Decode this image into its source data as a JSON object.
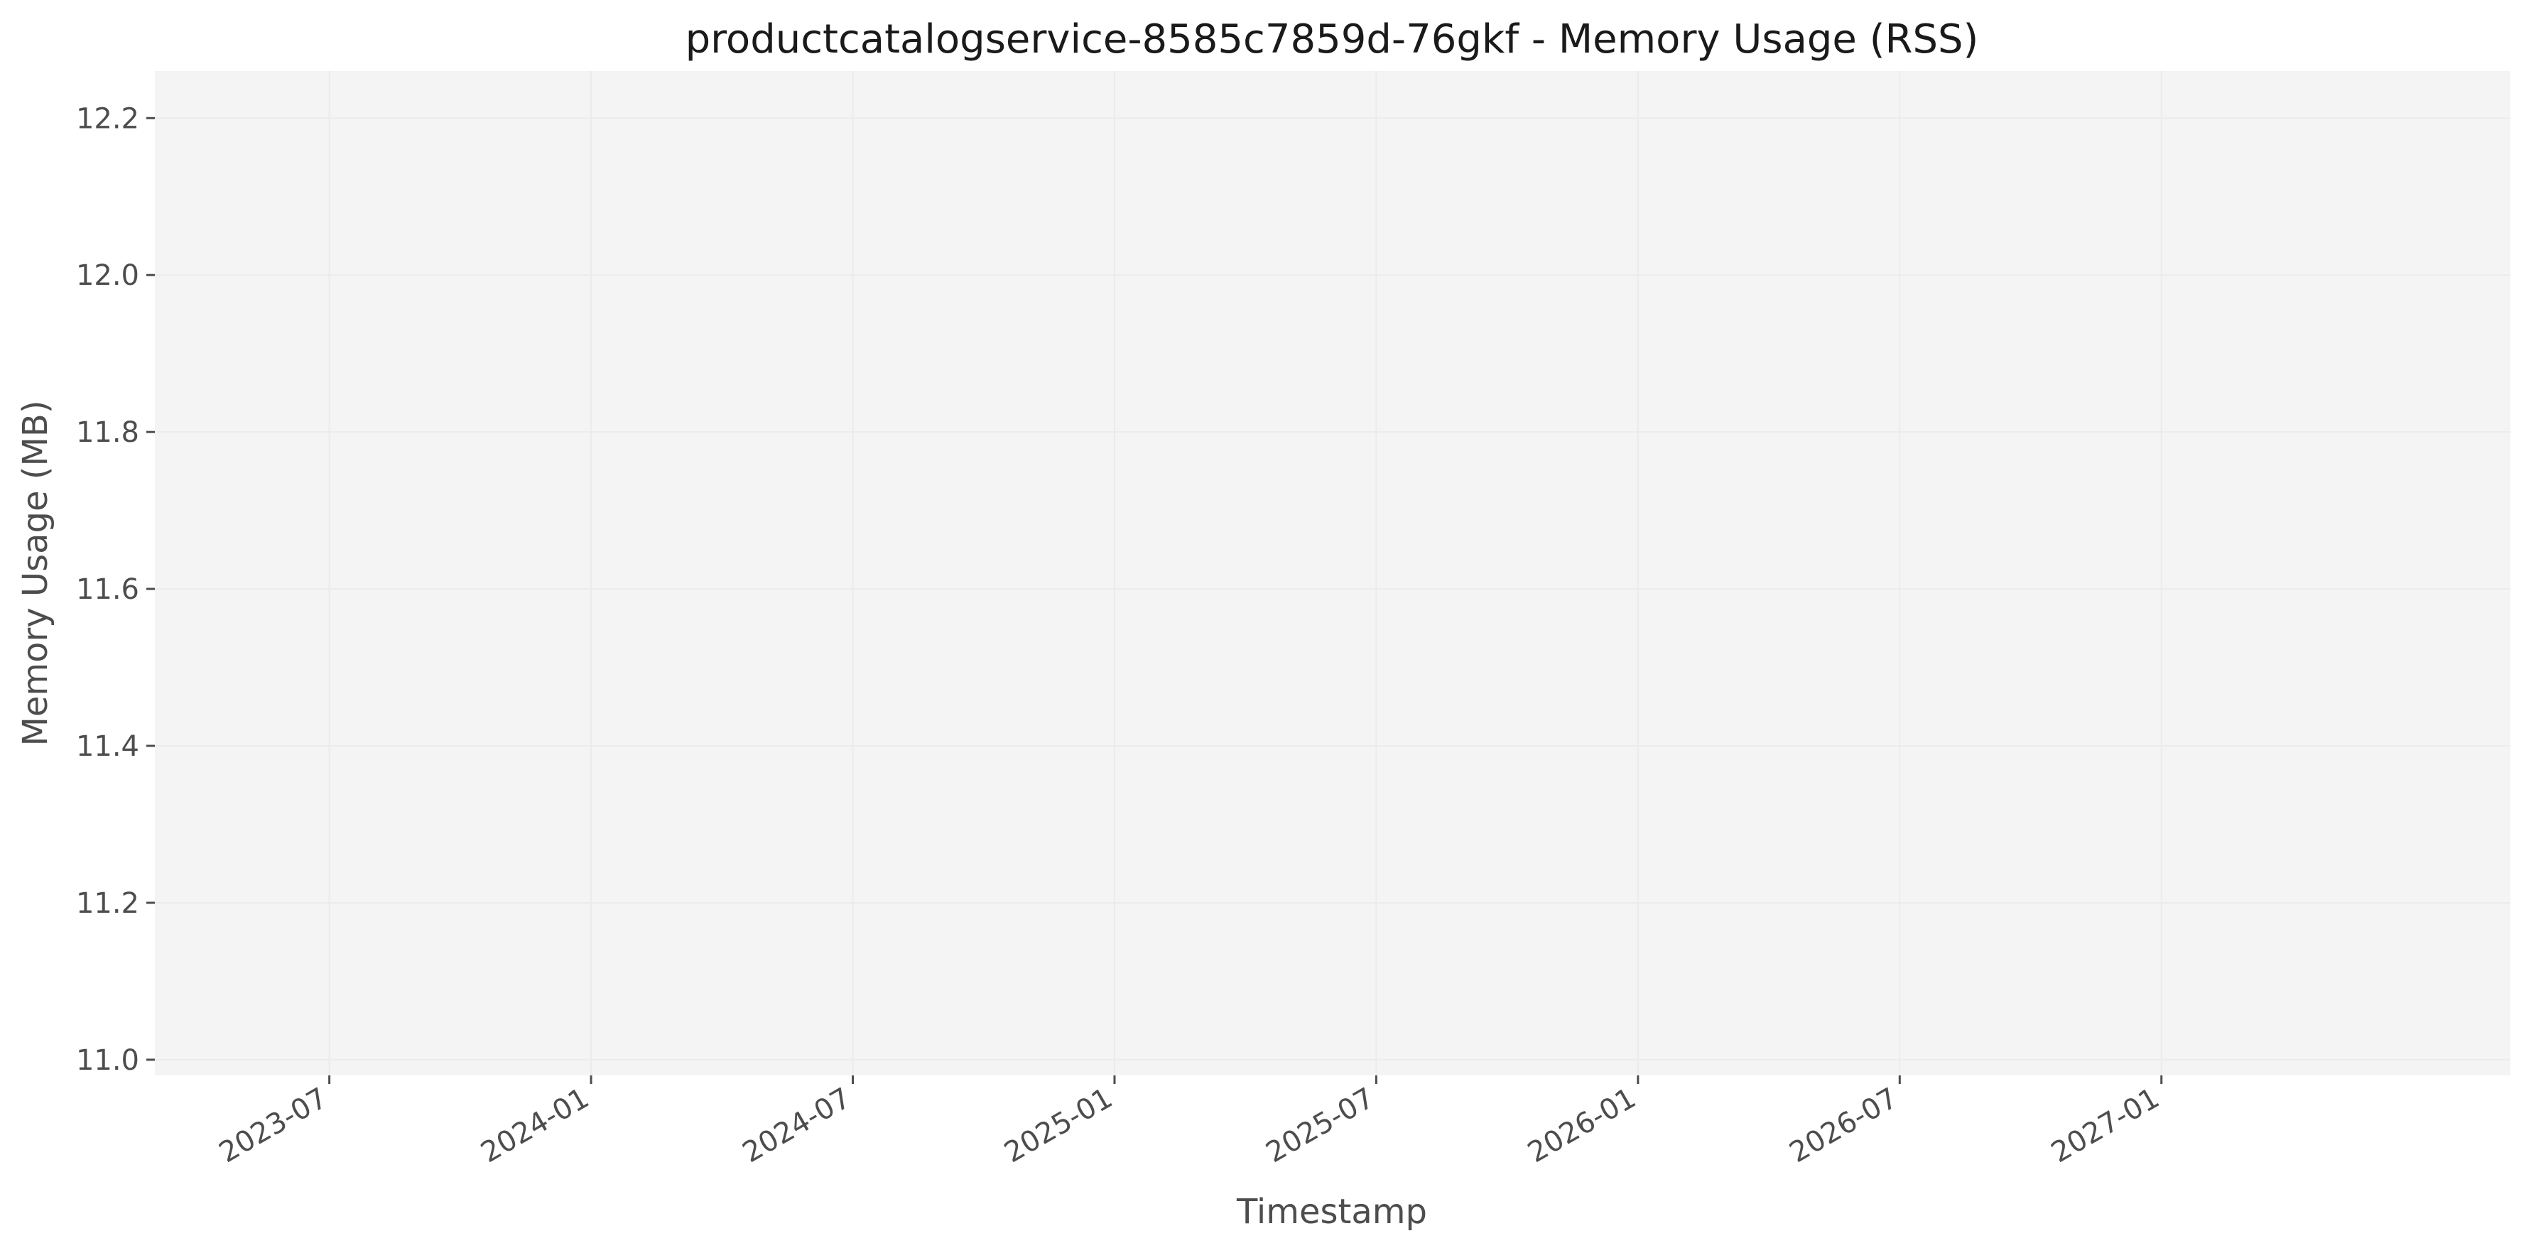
{
  "chart_data": {
    "type": "line",
    "title": "productcatalogservice-8585c7859d-76gkf - Memory Usage (RSS)",
    "xlabel": "Timestamp",
    "ylabel": "Memory Usage (MB)",
    "x_ticks": [
      "2023-07",
      "2024-01",
      "2024-07",
      "2025-01",
      "2025-07",
      "2026-01",
      "2026-07",
      "2027-01"
    ],
    "y_ticks": [
      "11.0",
      "11.2",
      "11.4",
      "11.6",
      "11.8",
      "12.0",
      "12.2"
    ],
    "xlim": [
      "2023-03",
      "2027-09"
    ],
    "ylim": [
      10.98,
      12.26
    ],
    "series": [],
    "grid": true,
    "colors": {
      "plot_background": "#f4f4f4",
      "grid": "#ebebeb",
      "text": "#4d4d4d",
      "title": "#1a1a1a"
    }
  }
}
